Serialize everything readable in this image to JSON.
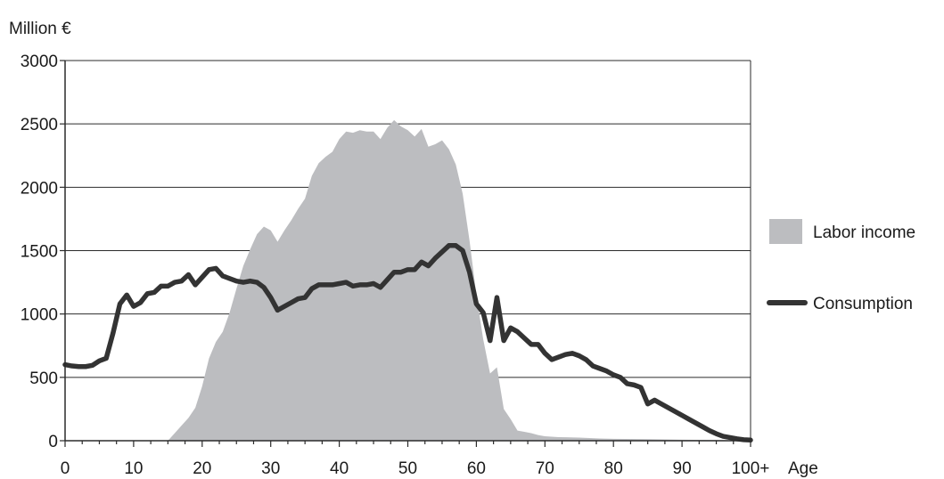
{
  "chart_data": {
    "type": "area",
    "ylabel": "Million €",
    "xlabel": "Age",
    "xlim": [
      0,
      100
    ],
    "ylim": [
      0,
      3000
    ],
    "x_ticks": [
      0,
      10,
      20,
      30,
      40,
      50,
      60,
      70,
      80,
      90,
      100
    ],
    "x_tick_labels": [
      "0",
      "10",
      "20",
      "30",
      "40",
      "50",
      "60",
      "70",
      "80",
      "90",
      "100+"
    ],
    "y_ticks": [
      0,
      500,
      1000,
      1500,
      2000,
      2500,
      3000
    ],
    "y_tick_labels": [
      "0",
      "500",
      "1000",
      "1500",
      "2000",
      "2500",
      "3000"
    ],
    "grid": "horizontal",
    "legend_position": "right",
    "series": [
      {
        "name": "Labor income",
        "kind": "area",
        "color": "#bcbdc0",
        "points": [
          [
            0,
            0
          ],
          [
            15,
            0
          ],
          [
            16,
            60
          ],
          [
            17,
            120
          ],
          [
            18,
            180
          ],
          [
            19,
            260
          ],
          [
            20,
            430
          ],
          [
            21,
            650
          ],
          [
            22,
            780
          ],
          [
            23,
            860
          ],
          [
            24,
            1010
          ],
          [
            25,
            1200
          ],
          [
            26,
            1380
          ],
          [
            27,
            1510
          ],
          [
            28,
            1630
          ],
          [
            29,
            1690
          ],
          [
            30,
            1660
          ],
          [
            31,
            1570
          ],
          [
            32,
            1660
          ],
          [
            33,
            1740
          ],
          [
            34,
            1830
          ],
          [
            35,
            1910
          ],
          [
            36,
            2090
          ],
          [
            37,
            2190
          ],
          [
            38,
            2240
          ],
          [
            39,
            2280
          ],
          [
            40,
            2380
          ],
          [
            41,
            2440
          ],
          [
            42,
            2430
          ],
          [
            43,
            2450
          ],
          [
            44,
            2440
          ],
          [
            45,
            2440
          ],
          [
            46,
            2380
          ],
          [
            47,
            2470
          ],
          [
            48,
            2530
          ],
          [
            49,
            2480
          ],
          [
            50,
            2450
          ],
          [
            51,
            2400
          ],
          [
            52,
            2460
          ],
          [
            53,
            2320
          ],
          [
            54,
            2340
          ],
          [
            55,
            2370
          ],
          [
            56,
            2300
          ],
          [
            57,
            2180
          ],
          [
            58,
            1950
          ],
          [
            59,
            1580
          ],
          [
            60,
            1150
          ],
          [
            61,
            800
          ],
          [
            62,
            530
          ],
          [
            63,
            580
          ],
          [
            64,
            250
          ],
          [
            65,
            170
          ],
          [
            66,
            80
          ],
          [
            67,
            70
          ],
          [
            68,
            60
          ],
          [
            69,
            45
          ],
          [
            70,
            35
          ],
          [
            72,
            28
          ],
          [
            75,
            25
          ],
          [
            78,
            18
          ],
          [
            80,
            15
          ],
          [
            85,
            12
          ],
          [
            90,
            8
          ],
          [
            95,
            5
          ],
          [
            100,
            0
          ]
        ]
      },
      {
        "name": "Consumption",
        "kind": "line",
        "color": "#333333",
        "points": [
          [
            0,
            600
          ],
          [
            1,
            590
          ],
          [
            2,
            585
          ],
          [
            3,
            585
          ],
          [
            4,
            595
          ],
          [
            5,
            630
          ],
          [
            6,
            650
          ],
          [
            7,
            850
          ],
          [
            8,
            1080
          ],
          [
            9,
            1150
          ],
          [
            10,
            1060
          ],
          [
            11,
            1090
          ],
          [
            12,
            1160
          ],
          [
            13,
            1170
          ],
          [
            14,
            1220
          ],
          [
            15,
            1220
          ],
          [
            16,
            1250
          ],
          [
            17,
            1260
          ],
          [
            18,
            1310
          ],
          [
            19,
            1230
          ],
          [
            20,
            1290
          ],
          [
            21,
            1350
          ],
          [
            22,
            1360
          ],
          [
            23,
            1300
          ],
          [
            24,
            1280
          ],
          [
            25,
            1260
          ],
          [
            26,
            1250
          ],
          [
            27,
            1260
          ],
          [
            28,
            1250
          ],
          [
            29,
            1210
          ],
          [
            30,
            1130
          ],
          [
            31,
            1030
          ],
          [
            32,
            1060
          ],
          [
            33,
            1090
          ],
          [
            34,
            1120
          ],
          [
            35,
            1130
          ],
          [
            36,
            1200
          ],
          [
            37,
            1230
          ],
          [
            38,
            1230
          ],
          [
            39,
            1230
          ],
          [
            40,
            1240
          ],
          [
            41,
            1250
          ],
          [
            42,
            1220
          ],
          [
            43,
            1230
          ],
          [
            44,
            1230
          ],
          [
            45,
            1240
          ],
          [
            46,
            1210
          ],
          [
            47,
            1270
          ],
          [
            48,
            1330
          ],
          [
            49,
            1330
          ],
          [
            50,
            1350
          ],
          [
            51,
            1350
          ],
          [
            52,
            1410
          ],
          [
            53,
            1380
          ],
          [
            54,
            1440
          ],
          [
            55,
            1490
          ],
          [
            56,
            1540
          ],
          [
            57,
            1540
          ],
          [
            58,
            1500
          ],
          [
            59,
            1330
          ],
          [
            60,
            1080
          ],
          [
            61,
            1010
          ],
          [
            62,
            790
          ],
          [
            63,
            1130
          ],
          [
            64,
            790
          ],
          [
            65,
            890
          ],
          [
            66,
            860
          ],
          [
            67,
            810
          ],
          [
            68,
            760
          ],
          [
            69,
            760
          ],
          [
            70,
            690
          ],
          [
            71,
            640
          ],
          [
            72,
            660
          ],
          [
            73,
            680
          ],
          [
            74,
            690
          ],
          [
            75,
            670
          ],
          [
            76,
            640
          ],
          [
            77,
            590
          ],
          [
            78,
            570
          ],
          [
            79,
            550
          ],
          [
            80,
            520
          ],
          [
            81,
            500
          ],
          [
            82,
            450
          ],
          [
            83,
            440
          ],
          [
            84,
            420
          ],
          [
            85,
            290
          ],
          [
            86,
            320
          ],
          [
            87,
            290
          ],
          [
            88,
            260
          ],
          [
            89,
            230
          ],
          [
            90,
            200
          ],
          [
            91,
            170
          ],
          [
            92,
            140
          ],
          [
            93,
            110
          ],
          [
            94,
            80
          ],
          [
            95,
            55
          ],
          [
            96,
            35
          ],
          [
            97,
            25
          ],
          [
            98,
            15
          ],
          [
            99,
            8
          ],
          [
            100,
            5
          ]
        ]
      }
    ]
  }
}
